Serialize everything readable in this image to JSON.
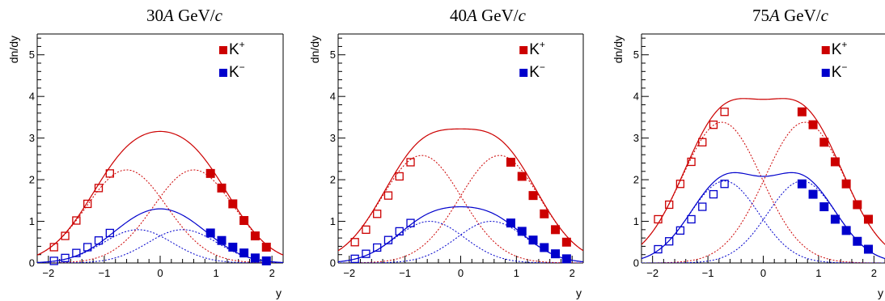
{
  "chart_data": [
    {
      "type": "scatter",
      "title": "30A GeV/c",
      "title_parts": {
        "number": "30",
        "italic_A": "A",
        "unit": " GeV/",
        "italic_c": "c"
      },
      "xlabel": "y",
      "ylabel": "dn/dy",
      "xlim": [
        -2.2,
        2.2
      ],
      "ylim": [
        0,
        5.5
      ],
      "xticks": [
        -2,
        -1,
        0,
        1,
        2
      ],
      "yticks": [
        0,
        1,
        2,
        3,
        4,
        5
      ],
      "grid": false,
      "legend": {
        "placement": "top-right",
        "entries": [
          {
            "name": "K",
            "sup": "+",
            "color": "#cc0000"
          },
          {
            "name": "K",
            "sup": "−",
            "color": "#0000cc"
          }
        ]
      },
      "series": [
        {
          "name": "K+",
          "color": "#cc0000",
          "measured": {
            "x": [
              0.9,
              1.1,
              1.3,
              1.5,
              1.7,
              1.9
            ],
            "y": [
              2.15,
              1.8,
              1.42,
              1.02,
              0.65,
              0.38
            ]
          },
          "reflected": {
            "x": [
              -0.9,
              -1.1,
              -1.3,
              -1.5,
              -1.7,
              -1.9
            ],
            "y": [
              2.15,
              1.8,
              1.42,
              1.02,
              0.65,
              0.38
            ]
          },
          "fit": {
            "sum_peak": 3.16,
            "component_mean": 0.6,
            "component_sigma": 0.72
          }
        },
        {
          "name": "K−",
          "color": "#0000cc",
          "measured": {
            "x": [
              0.9,
              1.1,
              1.3,
              1.5,
              1.7,
              1.9
            ],
            "y": [
              0.72,
              0.54,
              0.38,
              0.24,
              0.12,
              0.05
            ]
          },
          "reflected": {
            "x": [
              -0.9,
              -1.1,
              -1.3,
              -1.5,
              -1.7,
              -1.9
            ],
            "y": [
              0.72,
              0.54,
              0.38,
              0.24,
              0.12,
              0.05
            ]
          },
          "fit": {
            "sum_peak": 1.3,
            "component_mean": 0.4,
            "component_sigma": 0.62
          }
        }
      ]
    },
    {
      "type": "scatter",
      "title": "40A GeV/c",
      "title_parts": {
        "number": "40",
        "italic_A": "A",
        "unit": " GeV/",
        "italic_c": "c"
      },
      "xlabel": "y",
      "ylabel": "dn/dy",
      "xlim": [
        -2.2,
        2.2
      ],
      "ylim": [
        0,
        5.5
      ],
      "xticks": [
        -2,
        -1,
        0,
        1,
        2
      ],
      "yticks": [
        0,
        1,
        2,
        3,
        4,
        5
      ],
      "grid": false,
      "legend": {
        "placement": "top-right",
        "entries": [
          {
            "name": "K",
            "sup": "+",
            "color": "#cc0000"
          },
          {
            "name": "K",
            "sup": "−",
            "color": "#0000cc"
          }
        ]
      },
      "series": [
        {
          "name": "K+",
          "color": "#cc0000",
          "measured": {
            "x": [
              0.9,
              1.1,
              1.3,
              1.5,
              1.7,
              1.9
            ],
            "y": [
              2.42,
              2.08,
              1.62,
              1.18,
              0.8,
              0.5
            ]
          },
          "reflected": {
            "x": [
              -0.9,
              -1.1,
              -1.3,
              -1.5,
              -1.7,
              -1.9
            ],
            "y": [
              2.42,
              2.08,
              1.62,
              1.18,
              0.8,
              0.5
            ]
          },
          "fit": {
            "sum_peak": 3.22,
            "component_mean": 0.7,
            "component_sigma": 0.72
          }
        },
        {
          "name": "K−",
          "color": "#0000cc",
          "measured": {
            "x": [
              0.9,
              1.1,
              1.3,
              1.5,
              1.7,
              1.9
            ],
            "y": [
              0.96,
              0.76,
              0.55,
              0.37,
              0.22,
              0.1
            ]
          },
          "reflected": {
            "x": [
              -0.9,
              -1.1,
              -1.3,
              -1.5,
              -1.7,
              -1.9
            ],
            "y": [
              0.96,
              0.76,
              0.55,
              0.37,
              0.22,
              0.1
            ]
          },
          "fit": {
            "sum_peak": 1.35,
            "component_mean": 0.55,
            "component_sigma": 0.62
          }
        }
      ]
    },
    {
      "type": "scatter",
      "title": "75A GeV/c",
      "title_parts": {
        "number": "75",
        "italic_A": "A",
        "unit": " GeV/",
        "italic_c": "c"
      },
      "xlabel": "y",
      "ylabel": "dn/dy",
      "xlim": [
        -2.2,
        2.2
      ],
      "ylim": [
        0,
        5.5
      ],
      "xticks": [
        -2,
        -1,
        0,
        1,
        2
      ],
      "yticks": [
        0,
        1,
        2,
        3,
        4,
        5
      ],
      "grid": false,
      "legend": {
        "placement": "top-right",
        "entries": [
          {
            "name": "K",
            "sup": "+",
            "color": "#cc0000"
          },
          {
            "name": "K",
            "sup": "−",
            "color": "#0000cc"
          }
        ]
      },
      "series": [
        {
          "name": "K+",
          "color": "#cc0000",
          "measured": {
            "x": [
              0.7,
              0.9,
              1.1,
              1.3,
              1.5,
              1.7,
              1.9
            ],
            "y": [
              3.63,
              3.32,
              2.9,
              2.43,
              1.9,
              1.4,
              1.05
            ]
          },
          "reflected": {
            "x": [
              -0.7,
              -0.9,
              -1.1,
              -1.3,
              -1.5,
              -1.7,
              -1.9
            ],
            "y": [
              3.63,
              3.32,
              2.9,
              2.43,
              1.9,
              1.4,
              1.05
            ]
          },
          "fit": {
            "sum_peak": 3.93,
            "component_mean": 0.75,
            "component_sigma": 0.72
          }
        },
        {
          "name": "K−",
          "color": "#0000cc",
          "measured": {
            "x": [
              0.7,
              0.9,
              1.1,
              1.3,
              1.5,
              1.7,
              1.9
            ],
            "y": [
              1.9,
              1.65,
              1.35,
              1.05,
              0.78,
              0.52,
              0.33
            ]
          },
          "reflected": {
            "x": [
              -0.7,
              -0.9,
              -1.1,
              -1.3,
              -1.5,
              -1.7,
              -1.9
            ],
            "y": [
              1.9,
              1.65,
              1.35,
              1.05,
              0.78,
              0.52,
              0.33
            ]
          },
          "fit": {
            "sum_peak": 2.08,
            "component_mean": 0.7,
            "component_sigma": 0.62
          }
        }
      ]
    }
  ]
}
